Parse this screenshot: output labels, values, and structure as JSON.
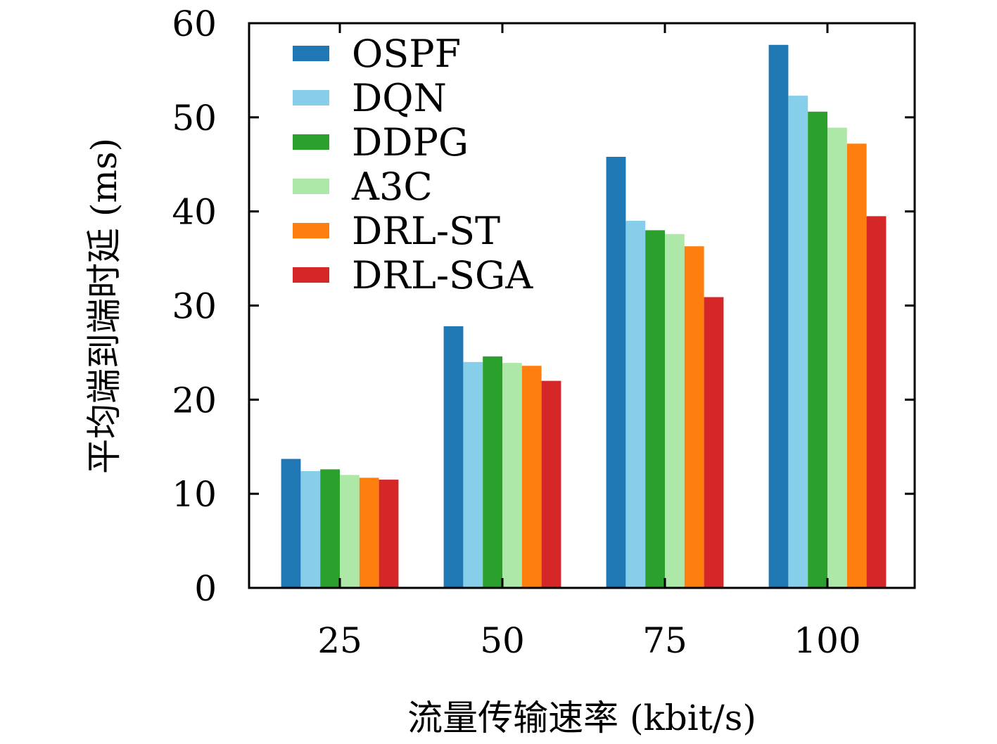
{
  "chart_data": {
    "type": "bar",
    "categories": [
      "25",
      "50",
      "75",
      "100"
    ],
    "xlabel": "流量传输速率 (kbit/s)",
    "ylabel": "平均端到端时延 (ms)",
    "ylim": [
      0,
      60
    ],
    "yticks": [
      "0",
      "10",
      "20",
      "30",
      "40",
      "50",
      "60"
    ],
    "grid": false,
    "legend_position": "top-left",
    "series": [
      {
        "name": "OSPF",
        "color": "#1f77b4",
        "values": [
          13.7,
          27.8,
          45.8,
          57.7
        ]
      },
      {
        "name": "DQN",
        "color": "#87ceeb",
        "values": [
          12.4,
          24.0,
          39.0,
          52.3
        ]
      },
      {
        "name": "DDPG",
        "color": "#2ca02c",
        "values": [
          12.6,
          24.6,
          38.0,
          50.6
        ]
      },
      {
        "name": "A3C",
        "color": "#aee8a9",
        "values": [
          12.0,
          23.9,
          37.6,
          48.9
        ]
      },
      {
        "name": "DRL-ST",
        "color": "#ff7f0e",
        "values": [
          11.7,
          23.6,
          36.3,
          47.2
        ]
      },
      {
        "name": "DRL-SGA",
        "color": "#d62728",
        "values": [
          11.5,
          22.0,
          30.9,
          39.5
        ]
      }
    ]
  }
}
